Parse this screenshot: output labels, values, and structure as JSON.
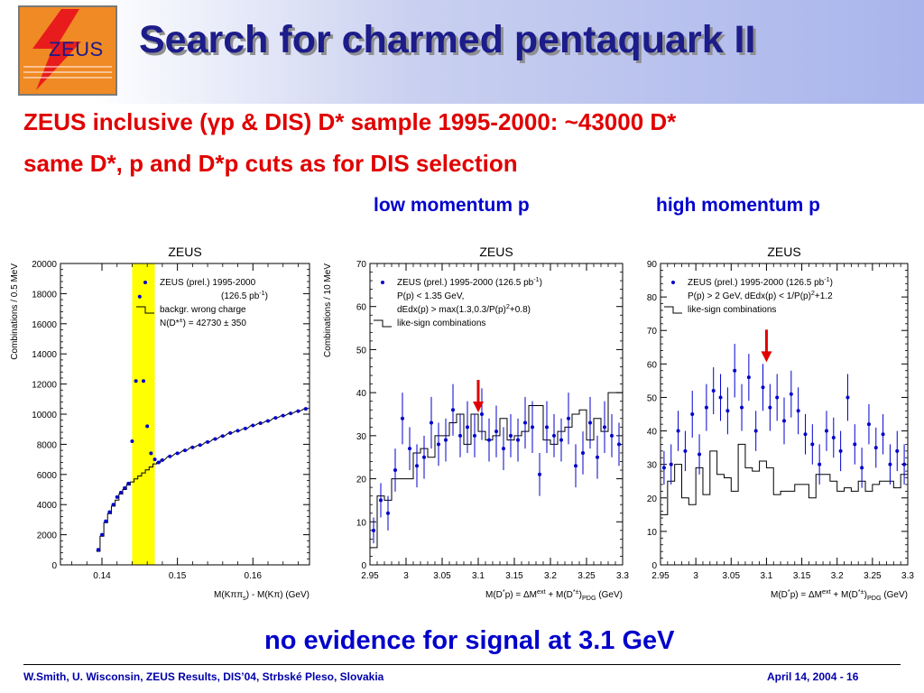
{
  "slide": {
    "logo_text": "ZEUS",
    "title": "Search for charmed pentaquark II",
    "subtitle_line1": "ZEUS inclusive (γp & DIS) D* sample 1995-2000:  ~43000 D*",
    "subtitle_line2": "same D*, p and D*p cuts as for DIS selection",
    "label_low": "low momentum p",
    "label_high": "high momentum p",
    "conclusion": "no evidence for signal at 3.1 GeV",
    "footer_left": "W.Smith, U. Wisconsin, ZEUS Results, DIS’04, Strbské Pleso, Slovakia",
    "footer_right": "April 14, 2004  -  16",
    "colors": {
      "title": "#1c1c8a",
      "subtitle": "#e00000",
      "blue": "#0000cc",
      "signal_band": "#ffff00",
      "arrow": "#e00000"
    }
  },
  "chart_data": [
    {
      "type": "scatter",
      "title": "ZEUS",
      "xlabel_parts": [
        "M(Kππ",
        "s",
        ") - M(Kπ)  (GeV)"
      ],
      "ylabel": "Combinations / 0.5 MeV",
      "xlim": [
        0.1345,
        0.1675
      ],
      "ylim": [
        0,
        20000
      ],
      "xticks": [
        0.14,
        0.15,
        0.16
      ],
      "xtick_labels": [
        "0.14",
        "0.15",
        "0.16"
      ],
      "yticks": [
        0,
        2000,
        4000,
        6000,
        8000,
        10000,
        12000,
        14000,
        16000,
        18000,
        20000
      ],
      "ytick_labels": [
        "0",
        "2000",
        "4000",
        "6000",
        "8000",
        "10000",
        "12000",
        "14000",
        "16000",
        "18000",
        "20000"
      ],
      "legend": [
        {
          "kind": "point",
          "parts": [
            [
              "ZEUS (prel.) 1995-2000",
              ""
            ]
          ]
        },
        {
          "kind": "text",
          "parts": [
            [
              "(126.5 pb",
              ""
            ],
            [
              "-1",
              "sup"
            ],
            [
              ")",
              ""
            ]
          ]
        },
        {
          "kind": "line",
          "parts": [
            [
              "backgr. wrong charge",
              ""
            ]
          ]
        },
        {
          "kind": "text",
          "parts": [
            [
              "N(D*",
              ""
            ],
            [
              "±",
              "sup"
            ],
            [
              ") = 42730 ± 350",
              ""
            ]
          ]
        }
      ],
      "signal_band": [
        0.144,
        0.147
      ],
      "series": [
        {
          "name": "ZEUS (prel.) 1995-2000",
          "x": [
            0.1395,
            0.14,
            0.1405,
            0.141,
            0.1415,
            0.142,
            0.1425,
            0.143,
            0.1435,
            0.144,
            0.1445,
            0.145,
            0.1455,
            0.146,
            0.1465,
            0.147,
            0.1475,
            0.148,
            0.149,
            0.15,
            0.151,
            0.152,
            0.153,
            0.154,
            0.155,
            0.156,
            0.157,
            0.158,
            0.159,
            0.16,
            0.161,
            0.162,
            0.163,
            0.164,
            0.165,
            0.166,
            0.167
          ],
          "y": [
            1000,
            2000,
            2900,
            3500,
            4000,
            4500,
            4800,
            5100,
            5400,
            8200,
            12200,
            17800,
            12200,
            9200,
            7400,
            7000,
            6800,
            6950,
            7200,
            7400,
            7600,
            7800,
            7950,
            8150,
            8350,
            8550,
            8750,
            8900,
            9050,
            9250,
            9400,
            9550,
            9750,
            9900,
            10050,
            10200,
            10350
          ]
        },
        {
          "name": "backgr. wrong charge",
          "x": [
            0.1395,
            0.14,
            0.1405,
            0.141,
            0.1415,
            0.142,
            0.1425,
            0.143,
            0.1435,
            0.144,
            0.1445,
            0.145,
            0.1455,
            0.146,
            0.1465,
            0.147,
            0.1475,
            0.148,
            0.149,
            0.15,
            0.151,
            0.152,
            0.153,
            0.154,
            0.155,
            0.156,
            0.157,
            0.158,
            0.159,
            0.16,
            0.161,
            0.162,
            0.163,
            0.164,
            0.165,
            0.166,
            0.167
          ],
          "y": [
            900,
            1900,
            2800,
            3400,
            3900,
            4300,
            4700,
            5000,
            5300,
            5500,
            5700,
            5900,
            6100,
            6300,
            6500,
            6700,
            6800,
            6950,
            7200,
            7400,
            7600,
            7800,
            7950,
            8150,
            8350,
            8550,
            8750,
            8900,
            9050,
            9250,
            9400,
            9550,
            9750,
            9900,
            10050,
            10200,
            10350
          ]
        }
      ]
    },
    {
      "type": "scatter",
      "title": "ZEUS",
      "xlabel_parts": [
        "M(D",
        "*",
        "p) = ΔM",
        "ext",
        " + M(D",
        "*±",
        ")",
        "PDG",
        " (GeV)"
      ],
      "ylabel": "Combinations / 10 MeV",
      "xlim": [
        2.95,
        3.3
      ],
      "ylim": [
        0,
        70
      ],
      "xticks": [
        2.95,
        3.0,
        3.05,
        3.1,
        3.15,
        3.2,
        3.25,
        3.3
      ],
      "xtick_labels": [
        "2.95",
        "3",
        "3.05",
        "3.1",
        "3.15",
        "3.2",
        "3.25",
        "3.3"
      ],
      "yticks": [
        0,
        10,
        20,
        30,
        40,
        50,
        60,
        70
      ],
      "ytick_labels": [
        "0",
        "10",
        "20",
        "30",
        "40",
        "50",
        "60",
        "70"
      ],
      "legend": [
        {
          "kind": "point",
          "parts": [
            [
              "ZEUS (prel.) 1995-2000 (126.5 pb",
              ""
            ],
            [
              "-1",
              "sup"
            ],
            [
              ")",
              ""
            ]
          ]
        },
        {
          "kind": "text",
          "parts": [
            [
              "P(p) < 1.35 GeV,",
              ""
            ]
          ]
        },
        {
          "kind": "text",
          "parts": [
            [
              "dEdx(p) > max(1.3,0.3/P(p)",
              ""
            ],
            [
              "2",
              "sup"
            ],
            [
              "+0.8)",
              ""
            ]
          ]
        },
        {
          "kind": "line",
          "parts": [
            [
              "like-sign combinations",
              ""
            ]
          ]
        }
      ],
      "arrow_x": 3.1,
      "series": [
        {
          "name": "ZEUS (prel.) 1995-2000 (126.5 pb-1)",
          "x": [
            2.955,
            2.965,
            2.975,
            2.985,
            2.995,
            3.005,
            3.015,
            3.025,
            3.035,
            3.045,
            3.055,
            3.065,
            3.075,
            3.085,
            3.095,
            3.105,
            3.115,
            3.125,
            3.135,
            3.145,
            3.155,
            3.165,
            3.175,
            3.185,
            3.195,
            3.205,
            3.215,
            3.225,
            3.235,
            3.245,
            3.255,
            3.265,
            3.275,
            3.285,
            3.295
          ],
          "y": [
            8,
            15,
            12,
            22,
            34,
            27,
            23,
            25,
            33,
            28,
            29,
            36,
            30,
            32,
            30,
            35,
            29,
            31,
            27,
            30,
            29,
            33,
            32,
            21,
            32,
            30,
            29,
            34,
            23,
            26,
            33,
            25,
            32,
            30,
            28
          ],
          "err": [
            3,
            4,
            4,
            5,
            6,
            5,
            5,
            5,
            6,
            5,
            5,
            6,
            5,
            6,
            5,
            6,
            5,
            6,
            5,
            5,
            5,
            6,
            6,
            5,
            6,
            5,
            5,
            6,
            5,
            5,
            6,
            5,
            6,
            5,
            5
          ]
        },
        {
          "name": "like-sign combinations",
          "edges": [
            2.95,
            2.96,
            2.97,
            2.98,
            2.99,
            3.0,
            3.01,
            3.02,
            3.03,
            3.04,
            3.05,
            3.06,
            3.07,
            3.08,
            3.09,
            3.1,
            3.11,
            3.12,
            3.13,
            3.14,
            3.15,
            3.16,
            3.17,
            3.18,
            3.19,
            3.2,
            3.21,
            3.22,
            3.23,
            3.24,
            3.25,
            3.26,
            3.27,
            3.28,
            3.29,
            3.3
          ],
          "y": [
            4,
            16,
            15,
            20,
            20,
            20,
            26,
            27,
            25,
            30,
            30,
            33,
            35,
            28,
            35,
            31,
            29,
            30,
            34,
            29,
            30,
            31,
            37,
            37,
            29,
            28,
            31,
            32,
            35,
            36,
            29,
            34,
            31,
            40,
            40
          ]
        }
      ]
    },
    {
      "type": "scatter",
      "title": "ZEUS",
      "xlabel_parts": [
        "M(D",
        "*",
        "p) = ΔM",
        "ext",
        " + M(D",
        "*±",
        ")",
        "PDG",
        " (GeV)"
      ],
      "ylabel": "",
      "xlim": [
        2.95,
        3.3
      ],
      "ylim": [
        0,
        90
      ],
      "xticks": [
        2.95,
        3.0,
        3.05,
        3.1,
        3.15,
        3.2,
        3.25,
        3.3
      ],
      "xtick_labels": [
        "2.95",
        "3",
        "3.05",
        "3.1",
        "3.15",
        "3.2",
        "3.25",
        "3.3"
      ],
      "yticks": [
        0,
        10,
        20,
        30,
        40,
        50,
        60,
        70,
        80,
        90
      ],
      "ytick_labels": [
        "0",
        "10",
        "20",
        "30",
        "40",
        "50",
        "60",
        "70",
        "80",
        "90"
      ],
      "legend": [
        {
          "kind": "point",
          "parts": [
            [
              "ZEUS (prel.) 1995-2000 (126.5 pb",
              ""
            ],
            [
              "-1",
              "sup"
            ],
            [
              ")",
              ""
            ]
          ]
        },
        {
          "kind": "text",
          "parts": [
            [
              "P(p) > 2 GeV, dEdx(p) < 1/P(p)",
              ""
            ],
            [
              "2",
              "sup"
            ],
            [
              "+1.2",
              ""
            ]
          ]
        },
        {
          "kind": "line",
          "parts": [
            [
              "like-sign combinations",
              ""
            ]
          ]
        }
      ],
      "arrow_x": 3.1,
      "series": [
        {
          "name": "ZEUS (prel.) 1995-2000 (126.5 pb-1)",
          "x": [
            2.955,
            2.965,
            2.975,
            2.985,
            2.995,
            3.005,
            3.015,
            3.025,
            3.035,
            3.045,
            3.055,
            3.065,
            3.075,
            3.085,
            3.095,
            3.105,
            3.115,
            3.125,
            3.135,
            3.145,
            3.155,
            3.165,
            3.175,
            3.185,
            3.195,
            3.205,
            3.215,
            3.225,
            3.235,
            3.245,
            3.255,
            3.265,
            3.275,
            3.285,
            3.295
          ],
          "y": [
            29,
            30,
            40,
            34,
            45,
            33,
            47,
            52,
            50,
            46,
            58,
            47,
            56,
            40,
            53,
            47,
            50,
            43,
            51,
            46,
            39,
            36,
            30,
            40,
            38,
            34,
            50,
            36,
            29,
            42,
            35,
            39,
            30,
            34,
            30
          ],
          "err": [
            5,
            6,
            6,
            6,
            7,
            6,
            7,
            7,
            7,
            7,
            8,
            7,
            7,
            6,
            7,
            7,
            7,
            7,
            7,
            7,
            6,
            6,
            6,
            6,
            6,
            6,
            7,
            6,
            6,
            6,
            6,
            6,
            6,
            6,
            6
          ]
        },
        {
          "name": "like-sign combinations",
          "edges": [
            2.95,
            2.96,
            2.97,
            2.98,
            2.99,
            3.0,
            3.01,
            3.02,
            3.03,
            3.04,
            3.05,
            3.06,
            3.07,
            3.08,
            3.09,
            3.1,
            3.11,
            3.12,
            3.13,
            3.14,
            3.15,
            3.16,
            3.17,
            3.18,
            3.19,
            3.2,
            3.21,
            3.22,
            3.23,
            3.24,
            3.25,
            3.26,
            3.27,
            3.28,
            3.29,
            3.3
          ],
          "y": [
            15,
            25,
            30,
            20,
            18,
            29,
            21,
            34,
            27,
            26,
            22,
            36,
            29,
            28,
            31,
            29,
            21,
            22,
            22,
            24,
            24,
            20,
            27,
            27,
            25,
            22,
            23,
            22,
            25,
            22,
            24,
            25,
            25,
            23,
            27
          ]
        }
      ]
    }
  ]
}
